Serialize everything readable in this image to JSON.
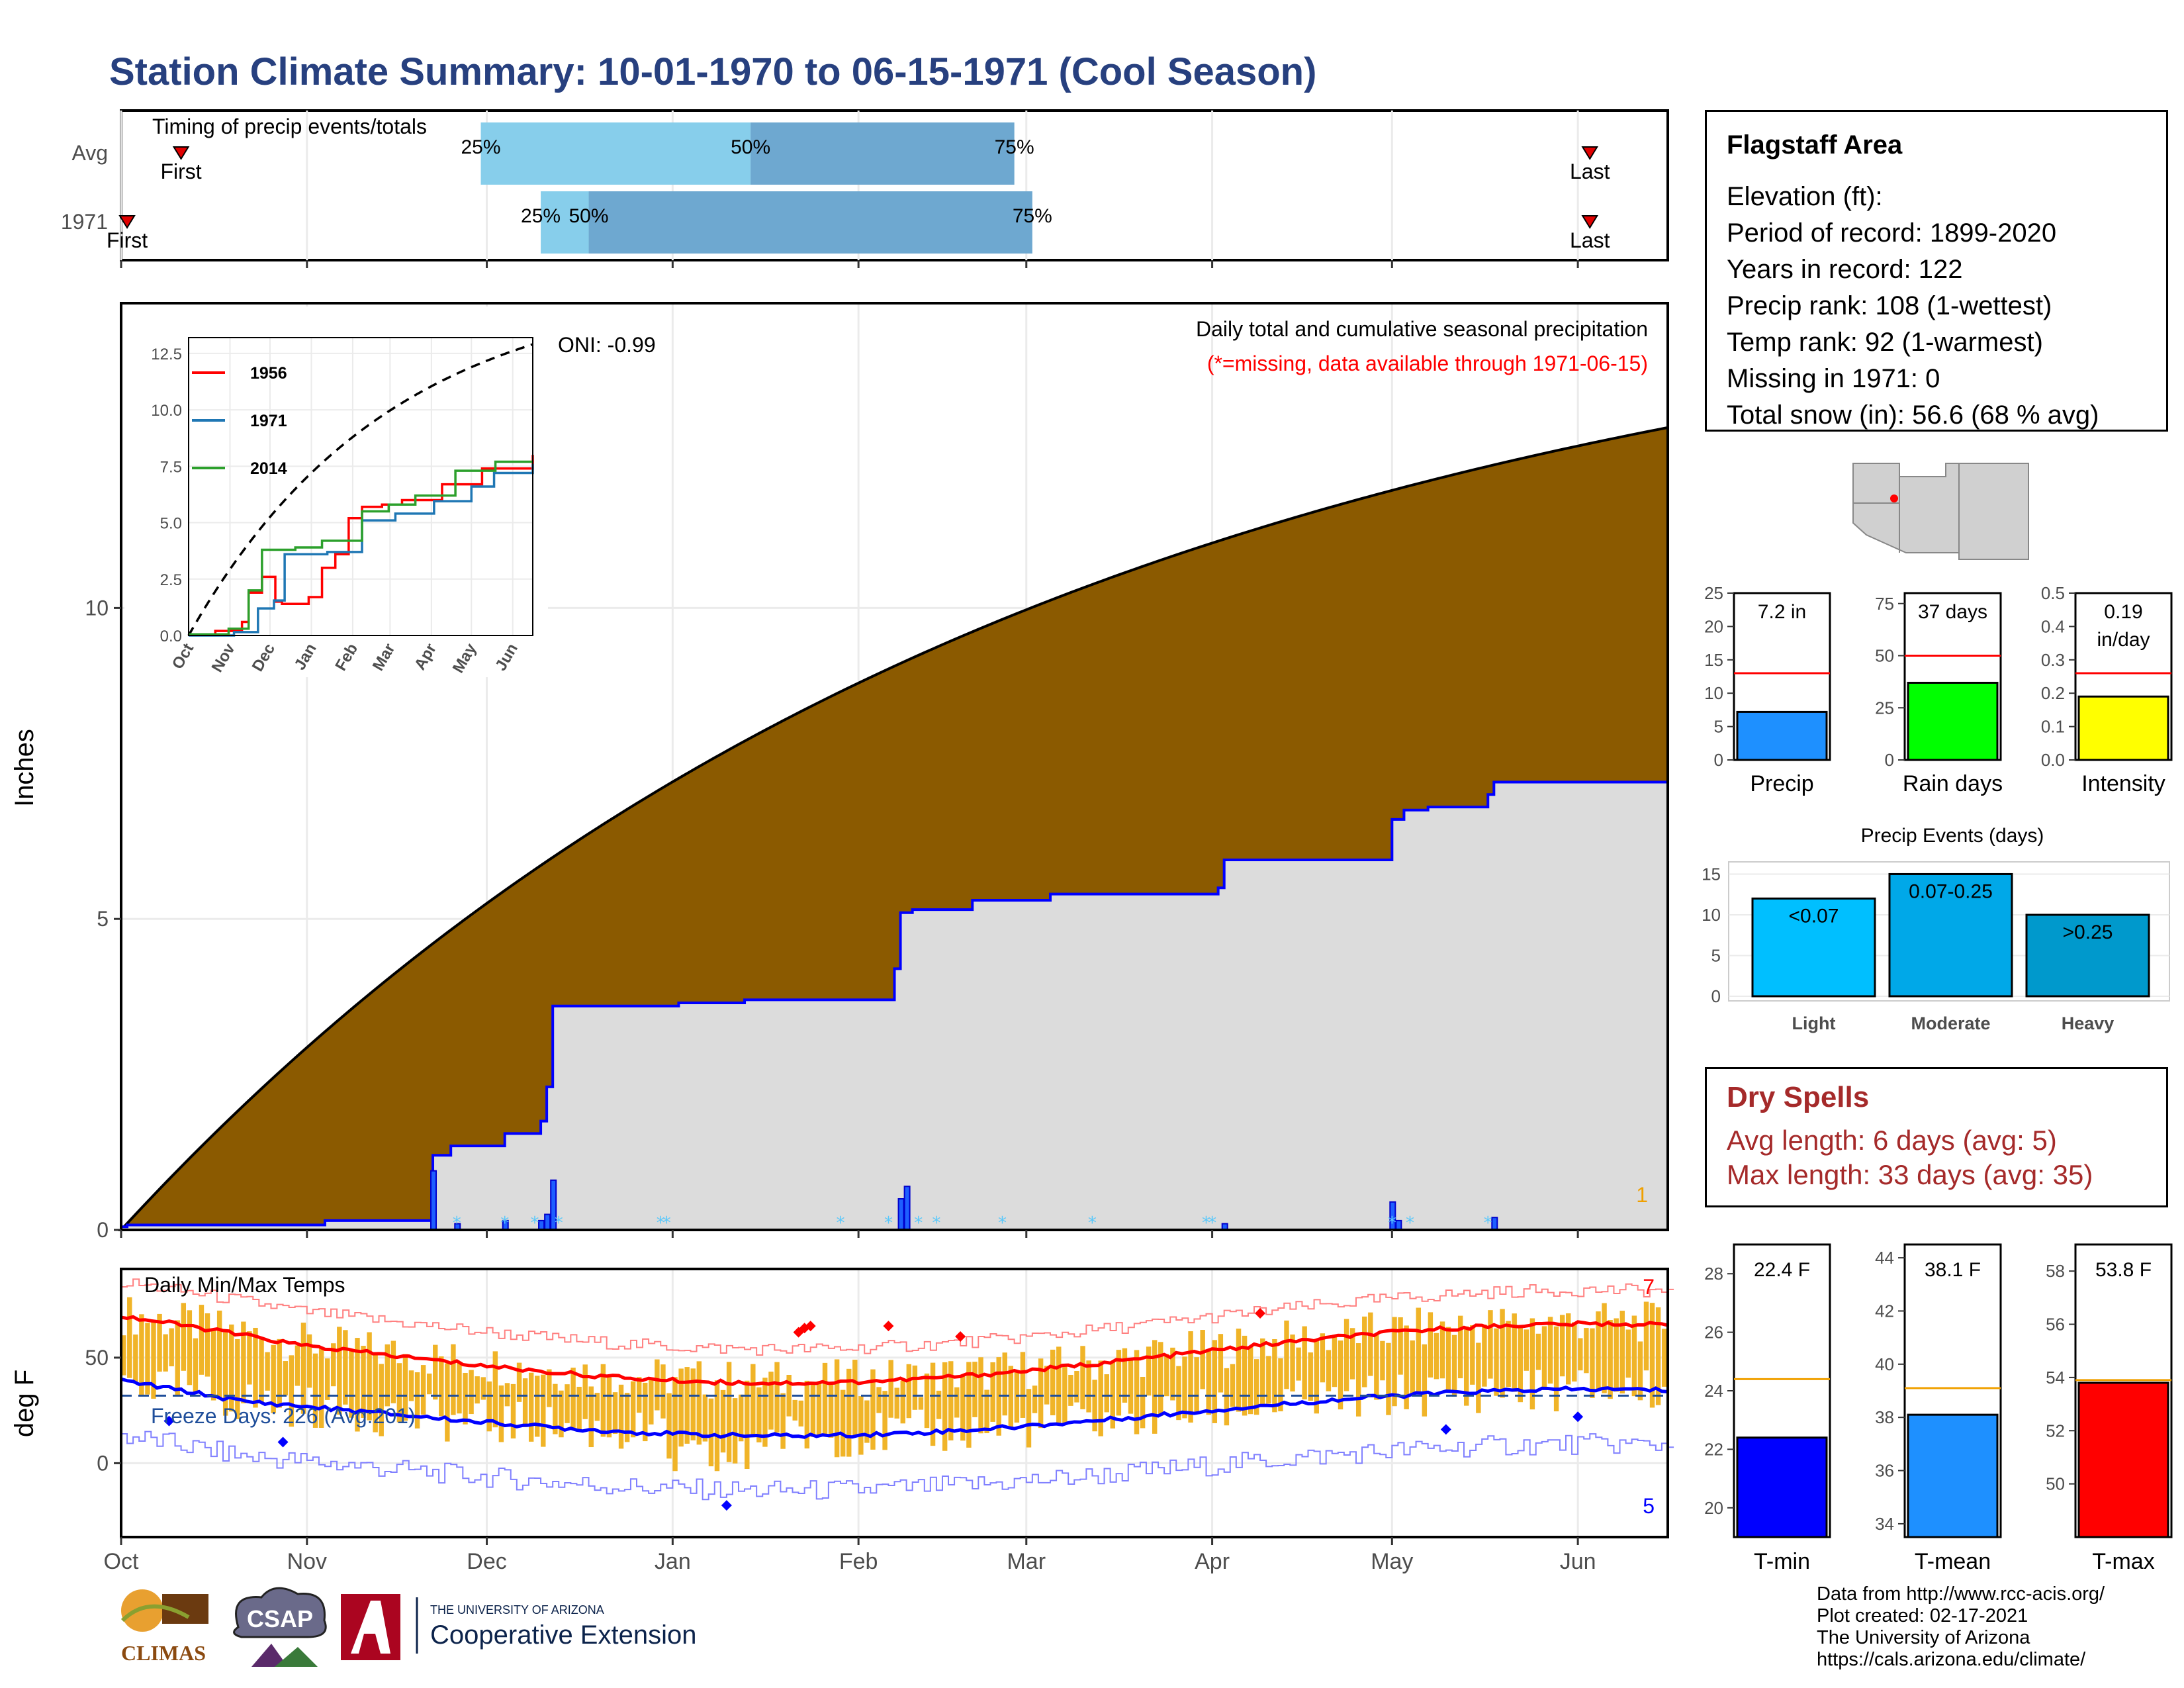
{
  "title": "Station Climate Summary: 10-01-1970 to 06-15-1971 (Cool Season)",
  "colors": {
    "title": "#27407f",
    "snowfill": "#8b5a00",
    "rainfill": "#dcdcdc",
    "blue": "#0000ff",
    "red": "#ff0000",
    "temps": "#f0b428",
    "dryspell": "#a52a2a"
  },
  "timing": {
    "title": "Timing of precip events/totals",
    "rows": [
      {
        "label": "Avg",
        "first": "First",
        "last": "Last",
        "p25": "25%",
        "p50": "50%",
        "p75": "75%",
        "first_day": 10,
        "last_day": 245,
        "q25": 60,
        "q50": 105,
        "q75": 149
      },
      {
        "label": "1971",
        "first": "First",
        "last": "Last",
        "p25": "25%",
        "p50": "50%",
        "p75": "75%",
        "first_day": 1,
        "last_day": 245,
        "q25": 70,
        "q50": 78,
        "q75": 152
      }
    ]
  },
  "info": {
    "station": "Flagstaff Area",
    "lines": [
      "Elevation (ft):",
      "Period of record: 1899-2020",
      "Years in record: 122",
      "Precip rank: 108 (1-wettest)",
      "Temp rank: 92 (1-warmest)",
      "Missing in 1971: 0",
      "Total snow (in): 56.6 (68 % avg)"
    ]
  },
  "months": [
    "Oct",
    "Nov",
    "Dec",
    "Jan",
    "Feb",
    "Mar",
    "Apr",
    "May",
    "Jun"
  ],
  "precip": {
    "ylabel": "Inches",
    "header": "Daily total and cumulative seasonal precipitation",
    "missing_note": "(*=missing, data available through 1971-06-15)",
    "oni": "ONI: -0.99",
    "corner_count": "1",
    "yticks": [
      "0",
      "5",
      "10"
    ]
  },
  "inset": {
    "years": [
      "1956",
      "1971",
      "2014"
    ],
    "yticks": [
      "0.0",
      "2.5",
      "5.0",
      "7.5",
      "10.0",
      "12.5"
    ],
    "months": [
      "Oct",
      "Nov",
      "Dec",
      "Jan",
      "Feb",
      "Mar",
      "Apr",
      "May",
      "Jun"
    ]
  },
  "temps": {
    "ylabel": "deg F",
    "title": "Daily Min/Max Temps",
    "freeze": "Freeze Days: 226 (Avg:201)",
    "top_count": "7",
    "bottom_count": "5",
    "yticks": [
      "0",
      "50"
    ]
  },
  "mini_bars": [
    {
      "label": "Precip",
      "value_text": "7.2 in",
      "value": 7.2,
      "avg": 13,
      "max": 25,
      "ticks": [
        "0",
        "5",
        "10",
        "15",
        "20",
        "25"
      ],
      "color": "#1e90ff"
    },
    {
      "label": "Rain days",
      "value_text": "37 days",
      "value": 37,
      "avg": 50,
      "max": 80,
      "ticks": [
        "0",
        "25",
        "50",
        "75"
      ],
      "color": "#00ff00"
    },
    {
      "label": "Intensity",
      "value_text": "0.19 in/day",
      "value": 0.19,
      "avg": 0.26,
      "max": 0.5,
      "ticks": [
        "0.0",
        "0.1",
        "0.2",
        "0.3",
        "0.4",
        "0.5"
      ],
      "color": "#ffff00"
    }
  ],
  "events": {
    "title": "Precip Events (days)",
    "ticks": [
      "0",
      "5",
      "10",
      "15"
    ],
    "bars": [
      {
        "cat": "Light",
        "label": "<0.07",
        "value": 12,
        "color": "#00bfff"
      },
      {
        "cat": "Moderate",
        "label": "0.07-0.25",
        "value": 15,
        "color": "#00a8e8"
      },
      {
        "cat": "Heavy",
        "label": ">0.25",
        "value": 10,
        "color": "#0099cc"
      }
    ]
  },
  "dry": {
    "title": "Dry Spells",
    "avg": "Avg length: 6 days (avg: 5)",
    "max": "Max length: 33 days (avg: 35)"
  },
  "temp_bars": [
    {
      "label": "T-min",
      "value_text": "22.4 F",
      "value": 22.4,
      "avg": 24.4,
      "min": 19,
      "max": 29,
      "ticks": [
        "20",
        "22",
        "24",
        "26",
        "28"
      ],
      "color": "#0000ff"
    },
    {
      "label": "T-mean",
      "value_text": "38.1 F",
      "value": 38.1,
      "avg": 39.1,
      "min": 33.5,
      "max": 44.5,
      "ticks": [
        "34",
        "36",
        "38",
        "40",
        "42",
        "44"
      ],
      "color": "#1e90ff"
    },
    {
      "label": "T-max",
      "value_text": "53.8 F",
      "value": 53.8,
      "avg": 53.9,
      "min": 48,
      "max": 59,
      "ticks": [
        "50",
        "52",
        "54",
        "56",
        "58"
      ],
      "color": "#ff0000"
    }
  ],
  "footer": [
    "Data from http://www.rcc-acis.org/",
    "Plot created: 02-17-2021",
    "The University of Arizona",
    "https://cals.arizona.edu/climate/"
  ],
  "logos": {
    "climas": "CLIMAS",
    "csap": "CSAP",
    "ua_small": "THE UNIVERSITY OF ARIZONA",
    "ua_ext": "Cooperative Extension"
  }
}
